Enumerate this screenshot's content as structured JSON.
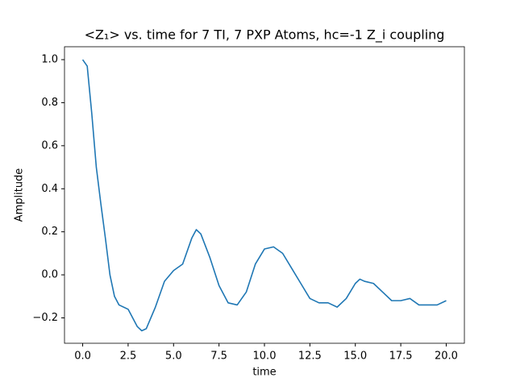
{
  "chart_data": {
    "type": "line",
    "title": "<Z₁>  vs. time for 7 TI, 7 PXP Atoms, hc=-1 Z_i coupling",
    "x_label": "time",
    "y_label": "Amplitude",
    "x": [
      0,
      0.25,
      0.5,
      0.75,
      1.0,
      1.25,
      1.5,
      1.75,
      2.0,
      2.5,
      3.0,
      3.25,
      3.5,
      4.0,
      4.5,
      5.0,
      5.5,
      6.0,
      6.25,
      6.5,
      7.0,
      7.5,
      8.0,
      8.5,
      9.0,
      9.5,
      10.0,
      10.5,
      11.0,
      11.5,
      12.0,
      12.5,
      13.0,
      13.5,
      14.0,
      14.5,
      15.0,
      15.25,
      15.5,
      16.0,
      16.5,
      17.0,
      17.5,
      18.0,
      18.5,
      19.0,
      19.5,
      20.0
    ],
    "series": [
      {
        "name": "<Z1>",
        "color": "#1f77b4",
        "values": [
          1.0,
          0.97,
          0.75,
          0.5,
          0.33,
          0.17,
          0.0,
          -0.1,
          -0.14,
          -0.16,
          -0.24,
          -0.26,
          -0.25,
          -0.15,
          -0.03,
          0.02,
          0.05,
          0.17,
          0.21,
          0.19,
          0.08,
          -0.05,
          -0.13,
          -0.14,
          -0.08,
          0.05,
          0.12,
          0.13,
          0.1,
          0.03,
          -0.04,
          -0.11,
          -0.13,
          -0.13,
          -0.15,
          -0.11,
          -0.04,
          -0.02,
          -0.03,
          -0.04,
          -0.08,
          -0.12,
          -0.12,
          -0.11,
          -0.14,
          -0.14,
          -0.14,
          -0.12
        ]
      }
    ],
    "xlim": [
      -1.0,
      21.0
    ],
    "ylim": [
      -0.318,
      1.06
    ],
    "xticks": [
      {
        "value": 0,
        "label": "0.0"
      },
      {
        "value": 2.5,
        "label": "2.5"
      },
      {
        "value": 5,
        "label": "5.0"
      },
      {
        "value": 7.5,
        "label": "7.5"
      },
      {
        "value": 10,
        "label": "10.0"
      },
      {
        "value": 12.5,
        "label": "12.5"
      },
      {
        "value": 15,
        "label": "15.0"
      },
      {
        "value": 17.5,
        "label": "17.5"
      },
      {
        "value": 20,
        "label": "20.0"
      }
    ],
    "yticks": [
      {
        "value": -0.2,
        "label": "−0.2"
      },
      {
        "value": 0,
        "label": "0.0"
      },
      {
        "value": 0.2,
        "label": "0.2"
      },
      {
        "value": 0.4,
        "label": "0.4"
      },
      {
        "value": 0.6,
        "label": "0.6"
      },
      {
        "value": 0.8,
        "label": "0.8"
      },
      {
        "value": 1.0,
        "label": "1.0"
      }
    ]
  }
}
